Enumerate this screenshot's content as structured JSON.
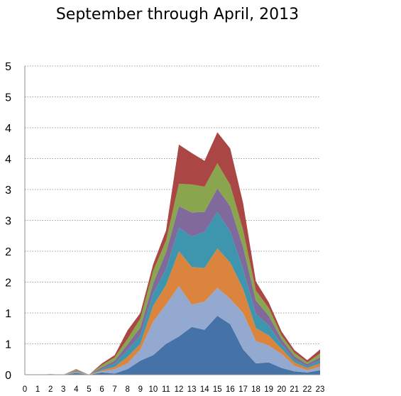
{
  "chart_data": {
    "type": "area",
    "stacked": true,
    "title": "September through April, 2013",
    "xlabel": "",
    "ylabel": "",
    "x": [
      0,
      1,
      2,
      3,
      4,
      5,
      6,
      7,
      8,
      9,
      10,
      11,
      12,
      13,
      14,
      15,
      16,
      17,
      18,
      19,
      20,
      21,
      22,
      23
    ],
    "x_tick_labels": [
      "0",
      "1",
      "2",
      "3",
      "4",
      "5",
      "6",
      "7",
      "8",
      "9",
      "10",
      "11",
      "12",
      "13",
      "14",
      "15",
      "16",
      "17",
      "18",
      "19",
      "20",
      "21",
      "22",
      "23"
    ],
    "y_tick_labels": [
      "0",
      "1",
      "1",
      "2",
      "2",
      "3",
      "3",
      "4",
      "4",
      "5",
      "5"
    ],
    "ylim": [
      0,
      5.5
    ],
    "grid": true,
    "legend": "none",
    "series": [
      {
        "color": "#4572A7",
        "values": [
          0,
          0,
          0.01,
          0,
          0.03,
          0,
          0.04,
          0.02,
          0.1,
          0.25,
          0.35,
          0.55,
          0.68,
          0.85,
          0.8,
          1.05,
          0.9,
          0.45,
          0.2,
          0.22,
          0.12,
          0.06,
          0.04,
          0.08
        ]
      },
      {
        "color": "#93A9CF",
        "values": [
          0,
          0,
          0,
          0,
          0.01,
          0,
          0.02,
          0.08,
          0.1,
          0.2,
          0.6,
          0.7,
          0.9,
          0.4,
          0.5,
          0.5,
          0.45,
          0.65,
          0.4,
          0.3,
          0.25,
          0.1,
          0.04,
          0.06
        ]
      },
      {
        "color": "#DB843D",
        "values": [
          0,
          0,
          0,
          0,
          0.01,
          0,
          0.02,
          0.04,
          0.12,
          0.1,
          0.28,
          0.35,
          0.62,
          0.67,
          0.6,
          0.7,
          0.65,
          0.43,
          0.23,
          0.18,
          0.09,
          0.06,
          0.04,
          0.06
        ]
      },
      {
        "color": "#3D96AE",
        "values": [
          0,
          0,
          0,
          0,
          0.01,
          0,
          0.02,
          0.06,
          0.12,
          0.15,
          0.22,
          0.28,
          0.42,
          0.54,
          0.65,
          0.65,
          0.55,
          0.35,
          0.25,
          0.18,
          0.08,
          0.05,
          0.03,
          0.06
        ]
      },
      {
        "color": "#80699B",
        "values": [
          0,
          0,
          0,
          0,
          0.01,
          0,
          0.03,
          0.05,
          0.1,
          0.14,
          0.18,
          0.3,
          0.38,
          0.43,
          0.35,
          0.42,
          0.45,
          0.39,
          0.24,
          0.17,
          0.09,
          0.06,
          0.04,
          0.05
        ]
      },
      {
        "color": "#89A54E",
        "values": [
          0,
          0,
          0,
          0,
          0.02,
          0,
          0.04,
          0.06,
          0.1,
          0.16,
          0.22,
          0.21,
          0.4,
          0.5,
          0.45,
          0.45,
          0.38,
          0.31,
          0.18,
          0.14,
          0.07,
          0.06,
          0.03,
          0.07
        ]
      },
      {
        "color": "#AA4643",
        "values": [
          0,
          0,
          0,
          0,
          0.01,
          0,
          0.03,
          0.04,
          0.15,
          0.1,
          0.12,
          0.18,
          0.7,
          0.56,
          0.46,
          0.55,
          0.65,
          0.48,
          0.16,
          0.1,
          0.07,
          0.05,
          0.04,
          0.07
        ]
      }
    ]
  }
}
